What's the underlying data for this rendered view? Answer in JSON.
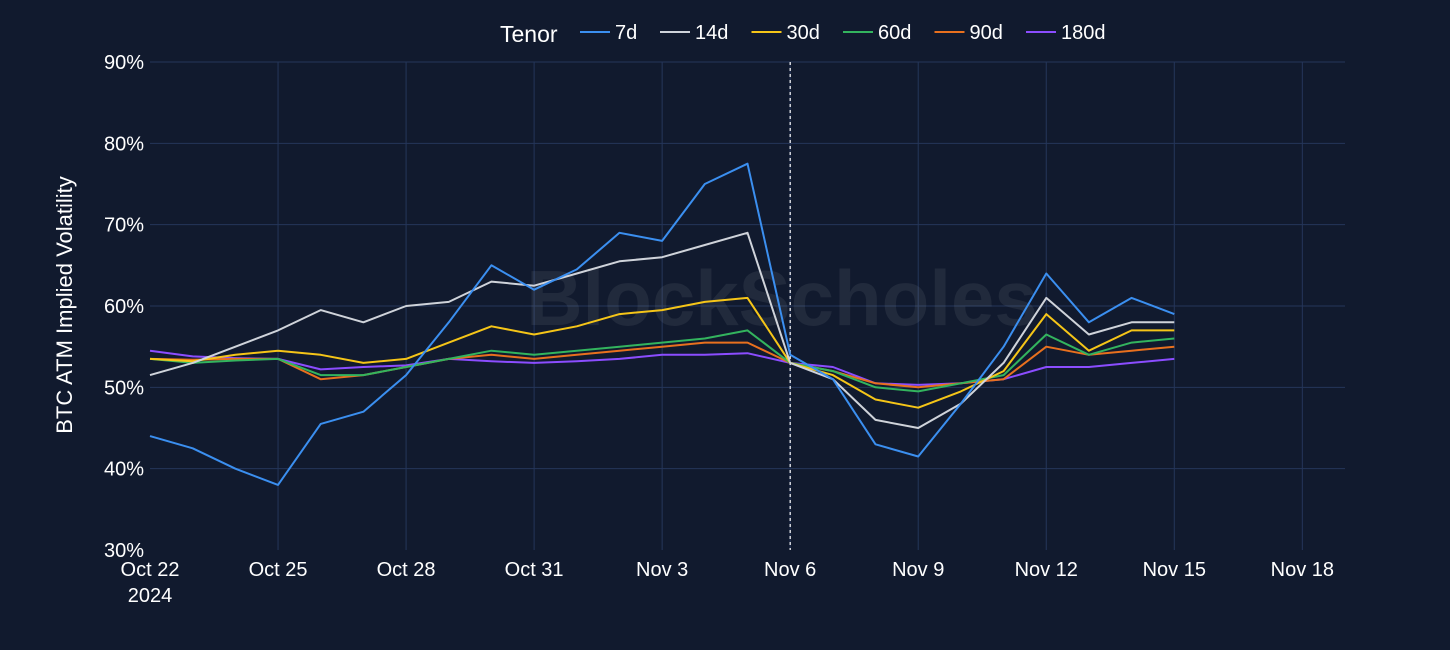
{
  "watermark": "BlockScholes",
  "chart_data": {
    "type": "line",
    "title": "",
    "legend_title": "Tenor",
    "legend_position": "top-center",
    "grid": true,
    "ylabel": "BTC ATM Implied Volatility",
    "xlabel": "",
    "ylim": [
      30,
      90
    ],
    "xlim": [
      "2024-10-22",
      "2024-11-19"
    ],
    "y_ticks": [
      "30%",
      "40%",
      "50%",
      "60%",
      "70%",
      "80%",
      "90%"
    ],
    "x_ticks": [
      "Oct 22",
      "Oct 25",
      "Oct 28",
      "Oct 31",
      "Nov 3",
      "Nov 6",
      "Nov 9",
      "Nov 12",
      "Nov 15",
      "Nov 18"
    ],
    "x_tick_sublabel": "2024",
    "vline": "2024-11-06",
    "x": [
      "2024-10-22",
      "2024-10-23",
      "2024-10-24",
      "2024-10-25",
      "2024-10-26",
      "2024-10-27",
      "2024-10-28",
      "2024-10-29",
      "2024-10-30",
      "2024-10-31",
      "2024-11-01",
      "2024-11-02",
      "2024-11-03",
      "2024-11-04",
      "2024-11-05",
      "2024-11-06",
      "2024-11-07",
      "2024-11-08",
      "2024-11-09",
      "2024-11-10",
      "2024-11-11",
      "2024-11-12",
      "2024-11-13",
      "2024-11-14",
      "2024-11-15"
    ],
    "series": [
      {
        "name": "7d",
        "color": "#3b8ff0",
        "values": [
          44,
          42.5,
          40,
          38,
          45.5,
          47,
          51.5,
          58,
          65,
          62,
          64.5,
          69,
          68,
          75,
          77.5,
          54,
          51,
          43,
          41.5,
          48,
          55,
          64,
          58,
          61,
          59
        ]
      },
      {
        "name": "14d",
        "color": "#cfd3da",
        "values": [
          51.5,
          53,
          55,
          57,
          59.5,
          58,
          60,
          60.5,
          63,
          62.5,
          64,
          65.5,
          66,
          67.5,
          69,
          53,
          51,
          46,
          45,
          48,
          53,
          61,
          56.5,
          58,
          58
        ]
      },
      {
        "name": "30d",
        "color": "#f5c518",
        "values": [
          53.5,
          53.2,
          54,
          54.5,
          54,
          53,
          53.5,
          55.5,
          57.5,
          56.5,
          57.5,
          59,
          59.5,
          60.5,
          61,
          53,
          51.5,
          48.5,
          47.5,
          49.5,
          52,
          59,
          54.5,
          57,
          57
        ]
      },
      {
        "name": "60d",
        "color": "#33b45e",
        "values": [
          53.5,
          53,
          53.3,
          53.5,
          51.5,
          51.5,
          52.5,
          53.5,
          54.5,
          54,
          54.5,
          55,
          55.5,
          56,
          57,
          53,
          52,
          50,
          49.5,
          50.5,
          51.5,
          56.5,
          54,
          55.5,
          56
        ]
      },
      {
        "name": "90d",
        "color": "#e8701e",
        "values": [
          53.5,
          53.4,
          53.5,
          53.5,
          51,
          51.5,
          52.5,
          53.5,
          54,
          53.5,
          54,
          54.5,
          55,
          55.5,
          55.5,
          53,
          52,
          50.5,
          50,
          50.5,
          51,
          55,
          54,
          54.5,
          55
        ]
      },
      {
        "name": "180d",
        "color": "#8b4dff",
        "values": [
          54.5,
          53.8,
          53.6,
          53.5,
          52.2,
          52.5,
          52.7,
          53.5,
          53.2,
          53,
          53.2,
          53.5,
          54,
          54,
          54.2,
          53,
          52.5,
          50.5,
          50.3,
          50.5,
          51,
          52.5,
          52.5,
          53,
          53.5
        ]
      }
    ]
  }
}
